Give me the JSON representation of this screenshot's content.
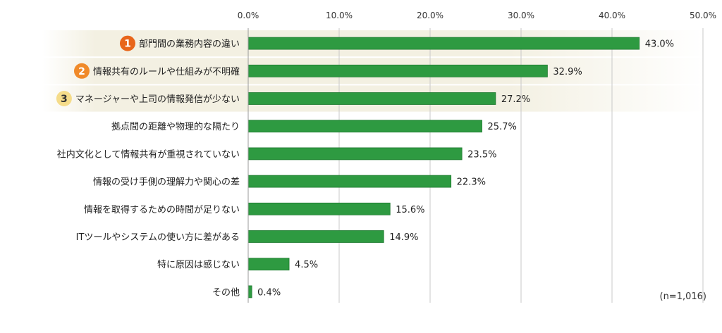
{
  "chart_data": {
    "type": "bar",
    "orientation": "horizontal",
    "categories": [
      "部門間の業務内容の違い",
      "情報共有のルールや仕組みが不明確",
      "マネージャーや上司の情報発信が少ない",
      "拠点間の距離や物理的な隔たり",
      "社内文化として情報共有が重視されていない",
      "情報の受け手側の理解力や関心の差",
      "情報を取得するための時間が足りない",
      "ITツールやシステムの使い方に差がある",
      "特に原因は感じない",
      "その他"
    ],
    "values": [
      43.0,
      32.9,
      27.2,
      25.7,
      23.5,
      22.3,
      15.6,
      14.9,
      4.5,
      0.4
    ],
    "value_labels": [
      "43.0%",
      "32.9%",
      "27.2%",
      "25.7%",
      "23.5%",
      "22.3%",
      "15.6%",
      "14.9%",
      "4.5%",
      "0.4%"
    ],
    "xlim": [
      0,
      50
    ],
    "xticks": [
      0,
      10,
      20,
      30,
      40,
      50
    ],
    "xtick_labels": [
      "0.0%",
      "10.0%",
      "20.0%",
      "30.0%",
      "40.0%",
      "50.0%"
    ],
    "grid": true,
    "rank_badges": [
      {
        "rank": "1",
        "color": "#e8651a",
        "text_color": "#ffffff"
      },
      {
        "rank": "2",
        "color": "#f08a2a",
        "text_color": "#ffffff"
      },
      {
        "rank": "3",
        "color": "#f5dc8a",
        "text_color": "#333333"
      }
    ],
    "bar_color": "#2e9a41",
    "bar_edge_color": "#1f7a30",
    "highlight_color": "#f3f0e2"
  },
  "note": "(n=1,016)"
}
